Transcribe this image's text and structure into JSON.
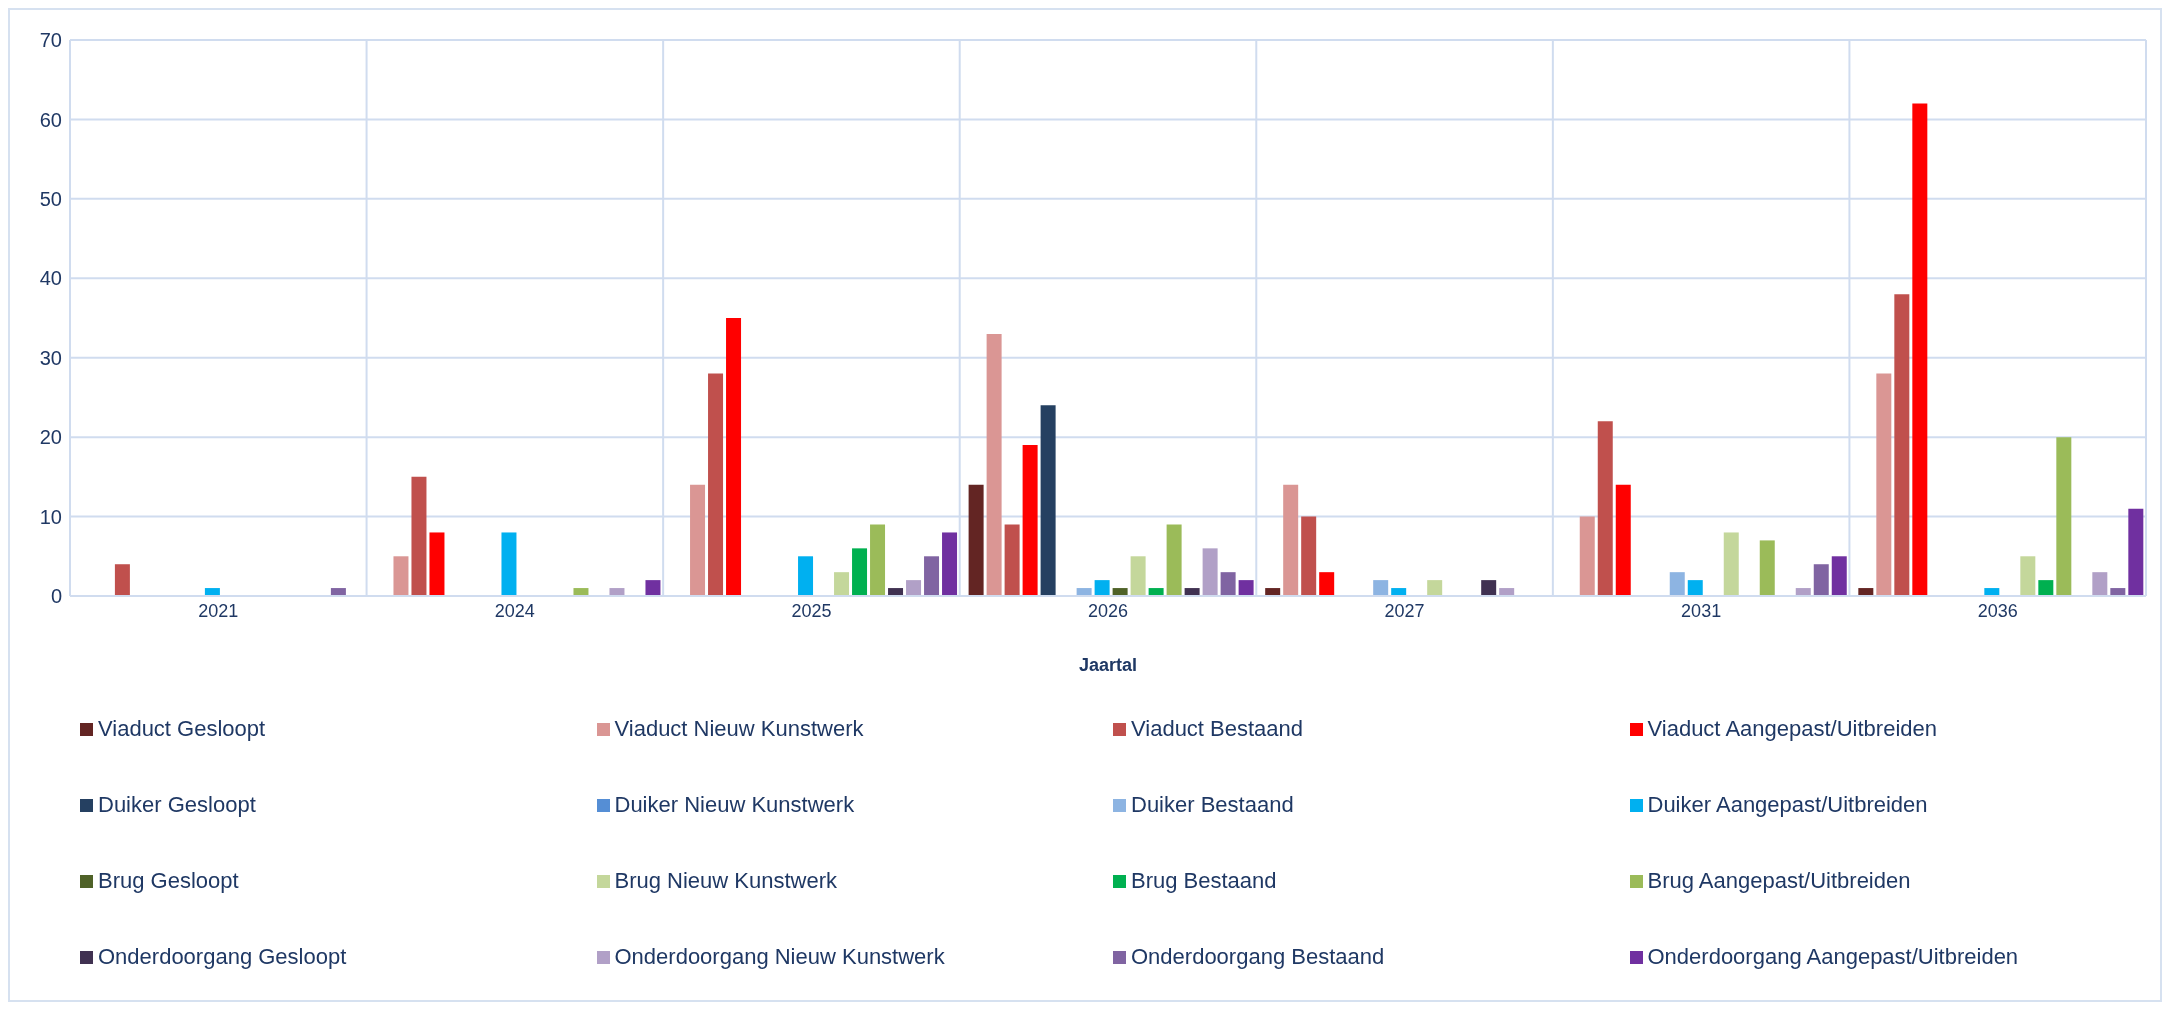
{
  "chart_data": {
    "type": "bar",
    "xlabel": "Jaartal",
    "categories": [
      "2021",
      "2024",
      "2025",
      "2026",
      "2027",
      "2031",
      "2036"
    ],
    "series": [
      {
        "name": "Viaduct Gesloopt",
        "color": "#632523",
        "values": [
          0,
          0,
          0,
          14,
          1,
          0,
          1
        ]
      },
      {
        "name": "Viaduct Nieuw Kunstwerk",
        "color": "#da9694",
        "values": [
          0,
          5,
          14,
          33,
          14,
          10,
          28
        ]
      },
      {
        "name": "Viaduct Bestaand",
        "color": "#c0504d",
        "values": [
          4,
          15,
          28,
          9,
          10,
          22,
          38
        ]
      },
      {
        "name": "Viaduct Aangepast/Uitbreiden",
        "color": "#ff0000",
        "values": [
          0,
          8,
          35,
          19,
          3,
          14,
          62
        ]
      },
      {
        "name": "Duiker Gesloopt",
        "color": "#254061",
        "values": [
          0,
          0,
          0,
          24,
          0,
          0,
          0
        ]
      },
      {
        "name": "Duiker Nieuw Kunstwerk",
        "color": "#558ed5",
        "values": [
          0,
          0,
          0,
          0,
          0,
          0,
          0
        ]
      },
      {
        "name": "Duiker Bestaand",
        "color": "#8db4e2",
        "values": [
          0,
          0,
          0,
          1,
          2,
          3,
          0
        ]
      },
      {
        "name": "Duiker Aangepast/Uitbreiden",
        "color": "#00b0f0",
        "values": [
          1,
          8,
          5,
          2,
          1,
          2,
          1
        ]
      },
      {
        "name": "Brug Gesloopt",
        "color": "#4f6228",
        "values": [
          0,
          0,
          0,
          1,
          0,
          0,
          0
        ]
      },
      {
        "name": "Brug Nieuw Kunstwerk",
        "color": "#c4d79b",
        "values": [
          0,
          0,
          3,
          5,
          2,
          8,
          5
        ]
      },
      {
        "name": "Brug Bestaand",
        "color": "#00b050",
        "values": [
          0,
          0,
          6,
          1,
          0,
          0,
          2
        ]
      },
      {
        "name": "Brug Aangepast/Uitbreiden",
        "color": "#9bbb59",
        "values": [
          0,
          1,
          9,
          9,
          0,
          7,
          20
        ]
      },
      {
        "name": "Onderdoorgang Gesloopt",
        "color": "#403151",
        "values": [
          0,
          0,
          1,
          1,
          2,
          0,
          0
        ]
      },
      {
        "name": "Onderdoorgang Nieuw Kunstwerk",
        "color": "#b1a0c7",
        "values": [
          0,
          1,
          2,
          6,
          1,
          1,
          3
        ]
      },
      {
        "name": "Onderdoorgang Bestaand",
        "color": "#8064a2",
        "values": [
          1,
          0,
          5,
          3,
          0,
          4,
          1
        ]
      },
      {
        "name": "Onderdoorgang Aangepast/Uitbreiden",
        "color": "#7030a0",
        "values": [
          0,
          2,
          8,
          2,
          0,
          5,
          11
        ]
      }
    ],
    "ylim": [
      0,
      70
    ],
    "yticks": [
      0,
      10,
      20,
      30,
      40,
      50,
      60,
      70
    ],
    "grid": true,
    "legend": "bottom"
  }
}
